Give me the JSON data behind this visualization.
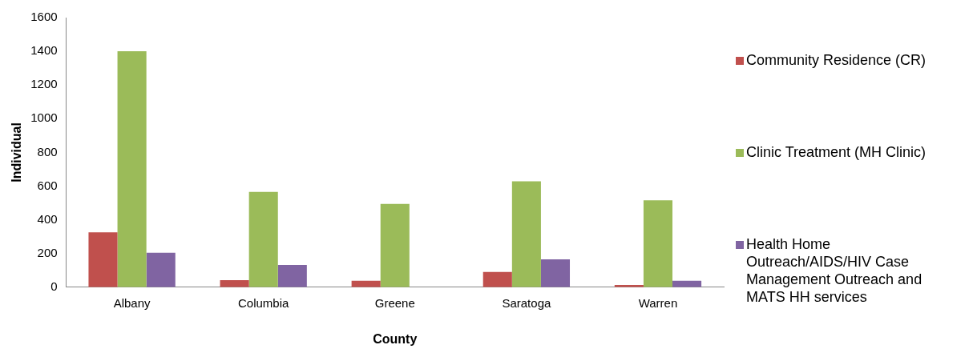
{
  "chart_data": {
    "type": "bar",
    "xlabel": "County",
    "ylabel": "Individual",
    "categories": [
      "Albany",
      "Columbia",
      "Greene",
      "Saratoga",
      "Warren"
    ],
    "series": [
      {
        "name": "Community Residence (CR)",
        "color": "#c0504d",
        "values": [
          326,
          42,
          38,
          91,
          13
        ]
      },
      {
        "name": "Clinic Treatment (MH Clinic)",
        "color": "#9bbb59",
        "values": [
          1400,
          565,
          494,
          629,
          516
        ]
      },
      {
        "name": "Health Home Outreach/AIDS/HIV Case Management Outreach and MATS HH services",
        "color": "#8064a2",
        "values": [
          204,
          132,
          null,
          165,
          38
        ]
      }
    ],
    "ylim": [
      0,
      1600
    ],
    "yticks": [
      0,
      200,
      400,
      600,
      800,
      1000,
      1200,
      1400,
      1600
    ],
    "grid": false,
    "legend": "right"
  }
}
